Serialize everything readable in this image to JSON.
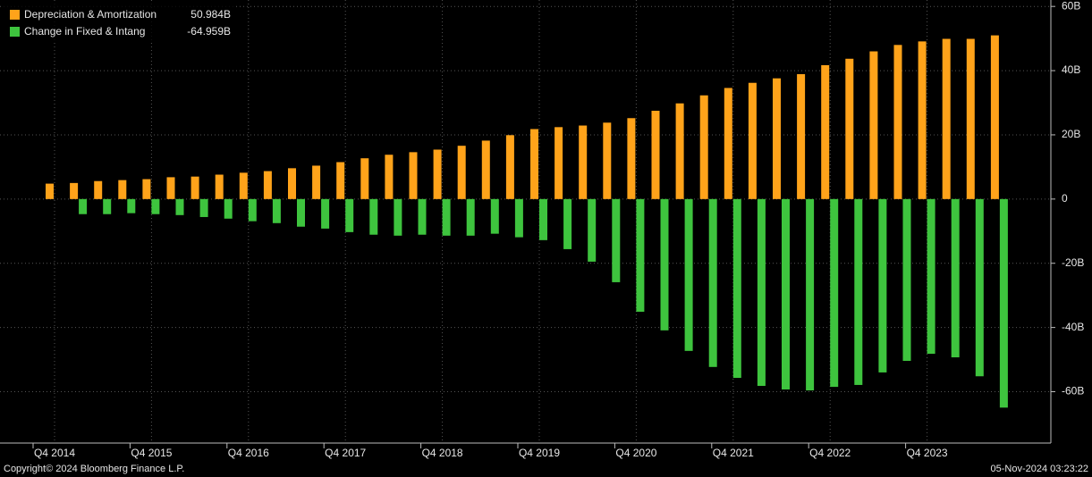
{
  "chart_data": {
    "type": "bar",
    "categories": [
      "Q4 2014",
      null,
      null,
      null,
      "Q4 2015",
      null,
      null,
      null,
      "Q4 2016",
      null,
      null,
      null,
      "Q4 2017",
      null,
      null,
      null,
      "Q4 2018",
      null,
      null,
      null,
      "Q4 2019",
      null,
      null,
      null,
      "Q4 2020",
      null,
      null,
      null,
      "Q4 2021",
      null,
      null,
      null,
      "Q4 2022",
      null,
      null,
      null,
      "Q4 2023",
      null,
      null,
      null
    ],
    "series": [
      {
        "name": "Depreciation & Amortization",
        "color": "#ffa31a",
        "legend_value": "50.984B",
        "values": [
          4.8,
          5.0,
          5.6,
          5.9,
          6.2,
          6.8,
          7.0,
          7.6,
          8.2,
          8.7,
          9.6,
          10.4,
          11.5,
          12.7,
          13.8,
          14.6,
          15.4,
          16.6,
          18.2,
          19.9,
          21.8,
          22.4,
          22.9,
          23.8,
          25.2,
          27.5,
          29.8,
          32.3,
          34.6,
          36.2,
          37.6,
          38.9,
          41.7,
          43.7,
          46.0,
          48.0,
          49.1,
          49.9,
          49.9,
          50.984
        ]
      },
      {
        "name": "Change in Fixed & Intang",
        "color": "#3ec43e",
        "legend_value": "-64.959B",
        "values": [
          null,
          -4.7,
          -4.7,
          -4.4,
          -4.7,
          -5.0,
          -5.6,
          -6.1,
          -6.9,
          -7.5,
          -8.6,
          -9.2,
          -10.3,
          -11.1,
          -11.4,
          -11.1,
          -11.4,
          -11.4,
          -10.8,
          -11.9,
          -12.8,
          -15.6,
          -19.5,
          -25.9,
          -35.1,
          -40.9,
          -47.3,
          -52.3,
          -55.7,
          -58.2,
          -59.3,
          -59.6,
          -58.5,
          -57.9,
          -54.0,
          -50.4,
          -48.2,
          -49.3,
          -55.2,
          -64.959
        ]
      }
    ],
    "ylim": [
      -76,
      62
    ],
    "yticks": [
      {
        "value": 60,
        "label": "60B"
      },
      {
        "value": 40,
        "label": "40B"
      },
      {
        "value": 20,
        "label": "20B"
      },
      0,
      {
        "value": -20,
        "label": "-20B"
      },
      {
        "value": -40,
        "label": "-40B"
      },
      {
        "value": -60,
        "label": "-60B"
      }
    ],
    "grid": true,
    "legend": "upper left",
    "copyright": "Copyright© 2024 Bloomberg Finance L.P.",
    "timestamp": "05-Nov-2024 03:23:22"
  }
}
